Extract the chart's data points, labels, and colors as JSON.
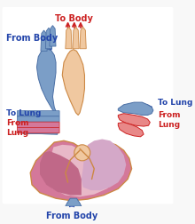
{
  "bg_color": "#f5f5f5",
  "title": "",
  "labels": {
    "to_body_top": "To Body",
    "from_body_top": "From Body",
    "to_lung_left": "To Lung",
    "from_lung_left": "From\nLung",
    "to_lung_right": "To Lung",
    "from_lung_right": "From\nLung",
    "from_body_bottom": "From Body"
  },
  "colors": {
    "blue_vessel": "#7b9ec7",
    "blue_dark": "#4a6fa5",
    "red_dark": "#cc2222",
    "blue_arrow": "#2244aa",
    "red_arrow": "#cc2222",
    "heart_pink_outer": "#d4789a",
    "heart_pink_inner": "#c9a0c0",
    "heart_peach": "#f0c8a0",
    "heart_light_pink": "#e8b8c8",
    "vessel_blue_light": "#8aadcc",
    "vessel_peach": "#f0c8a0",
    "outline": "#cc8844",
    "white": "#ffffff",
    "label_blue": "#2244aa",
    "label_red": "#cc2222"
  }
}
